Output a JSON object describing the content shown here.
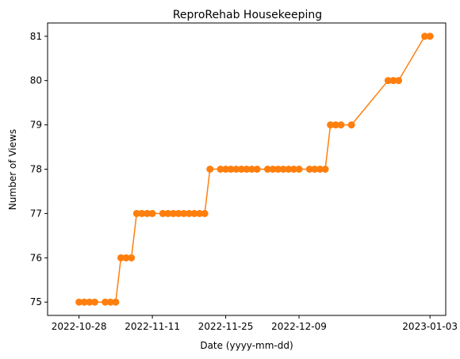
{
  "chart_data": {
    "type": "line",
    "title": "ReproRehab Housekeeping",
    "xlabel": "Date (yyyy-mm-dd)",
    "ylabel": "Number of Views",
    "x_tick_labels": [
      "2022-10-28",
      "2022-11-11",
      "2022-11-25",
      "2022-12-09",
      "2023-01-03"
    ],
    "x_ticks": [
      "2022-10-28",
      "2022-11-11",
      "2022-11-25",
      "2022-12-09",
      "2023-01-03"
    ],
    "y_ticks": [
      75,
      76,
      77,
      78,
      79,
      80,
      81
    ],
    "xlim": [
      "2022-10-22",
      "2023-01-06"
    ],
    "ylim": [
      74.7,
      81.3
    ],
    "grid": false,
    "series": [
      {
        "color": "#ff7f0e",
        "points": [
          [
            "2022-10-28",
            75
          ],
          [
            "2022-10-29",
            75
          ],
          [
            "2022-10-30",
            75
          ],
          [
            "2022-10-31",
            75
          ],
          [
            "2022-11-02",
            75
          ],
          [
            "2022-11-03",
            75
          ],
          [
            "2022-11-04",
            75
          ],
          [
            "2022-11-05",
            76
          ],
          [
            "2022-11-06",
            76
          ],
          [
            "2022-11-07",
            76
          ],
          [
            "2022-11-08",
            77
          ],
          [
            "2022-11-09",
            77
          ],
          [
            "2022-11-10",
            77
          ],
          [
            "2022-11-11",
            77
          ],
          [
            "2022-11-13",
            77
          ],
          [
            "2022-11-14",
            77
          ],
          [
            "2022-11-15",
            77
          ],
          [
            "2022-11-16",
            77
          ],
          [
            "2022-11-17",
            77
          ],
          [
            "2022-11-18",
            77
          ],
          [
            "2022-11-19",
            77
          ],
          [
            "2022-11-20",
            77
          ],
          [
            "2022-11-21",
            77
          ],
          [
            "2022-11-22",
            78
          ],
          [
            "2022-11-24",
            78
          ],
          [
            "2022-11-25",
            78
          ],
          [
            "2022-11-26",
            78
          ],
          [
            "2022-11-27",
            78
          ],
          [
            "2022-11-28",
            78
          ],
          [
            "2022-11-29",
            78
          ],
          [
            "2022-11-30",
            78
          ],
          [
            "2022-12-01",
            78
          ],
          [
            "2022-12-03",
            78
          ],
          [
            "2022-12-04",
            78
          ],
          [
            "2022-12-05",
            78
          ],
          [
            "2022-12-06",
            78
          ],
          [
            "2022-12-07",
            78
          ],
          [
            "2022-12-08",
            78
          ],
          [
            "2022-12-09",
            78
          ],
          [
            "2022-12-11",
            78
          ],
          [
            "2022-12-12",
            78
          ],
          [
            "2022-12-13",
            78
          ],
          [
            "2022-12-14",
            78
          ],
          [
            "2022-12-15",
            79
          ],
          [
            "2022-12-16",
            79
          ],
          [
            "2022-12-17",
            79
          ],
          [
            "2022-12-19",
            79
          ],
          [
            "2022-12-26",
            80
          ],
          [
            "2022-12-27",
            80
          ],
          [
            "2022-12-28",
            80
          ],
          [
            "2023-01-02",
            81
          ],
          [
            "2023-01-03",
            81
          ]
        ]
      }
    ]
  }
}
